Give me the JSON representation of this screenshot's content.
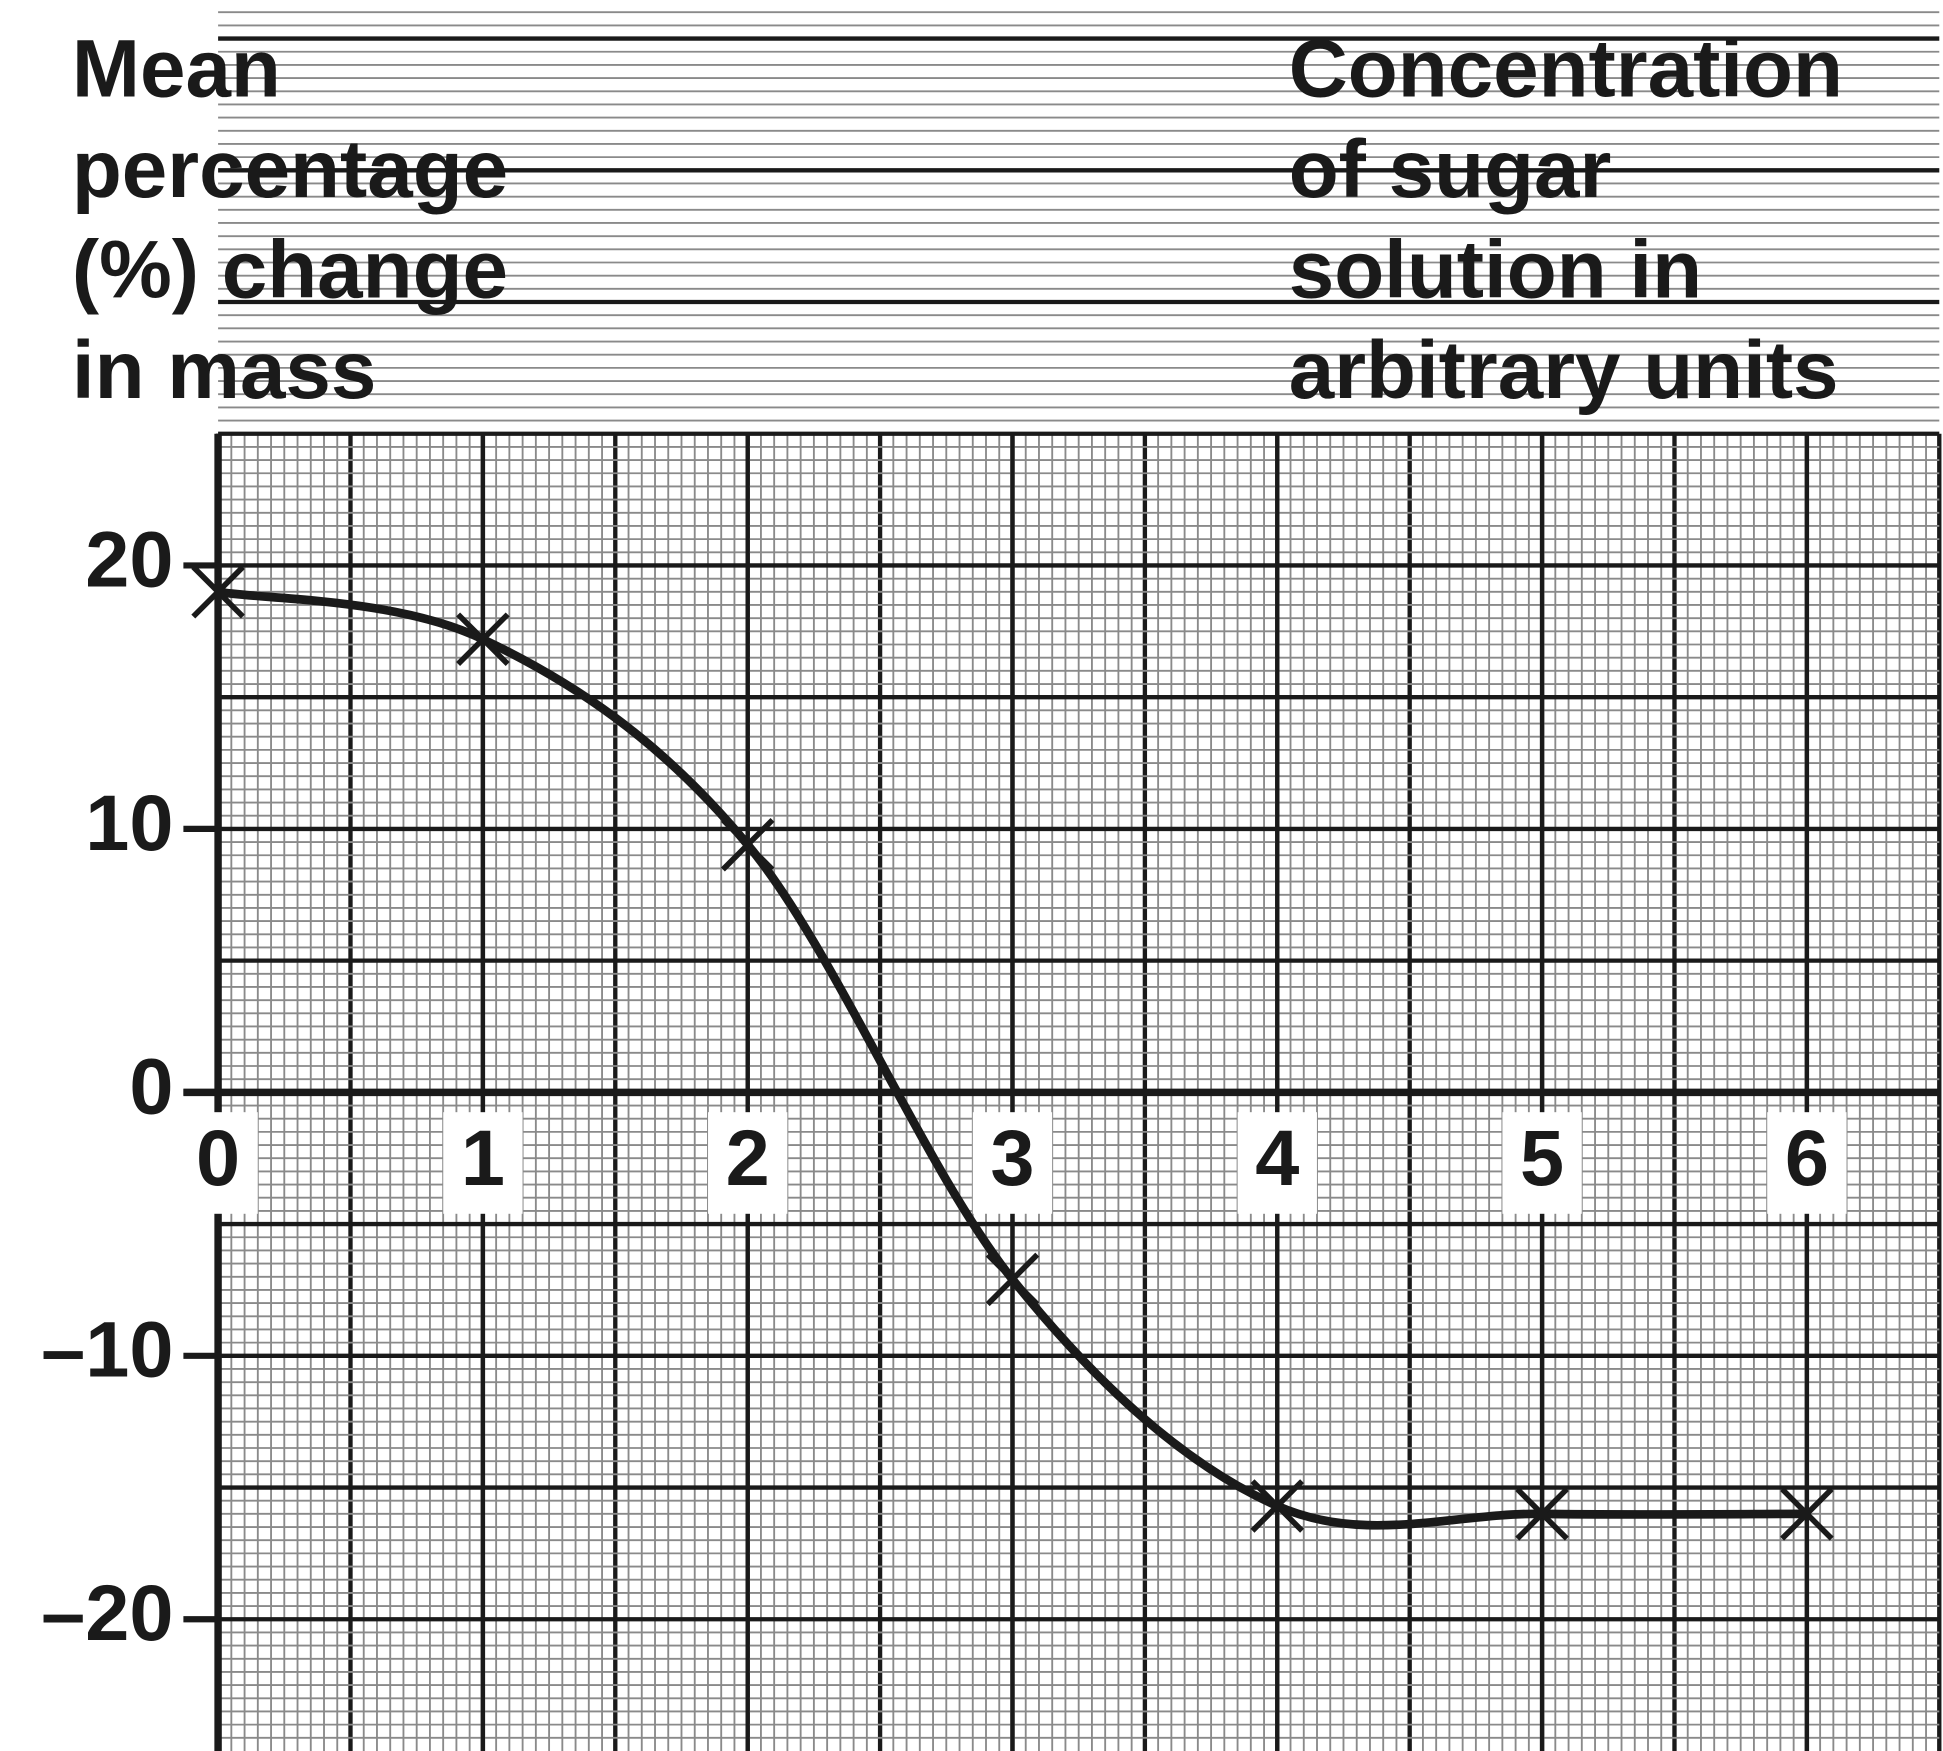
{
  "chart_data": {
    "type": "line",
    "ylabel": [
      "Mean",
      "percentage",
      "(%) change",
      "in mass"
    ],
    "xlabel": [
      "Concentration",
      "of sugar",
      "solution in",
      "arbitrary units"
    ],
    "x": [
      0,
      1,
      2,
      3,
      4,
      5,
      6
    ],
    "series": [
      {
        "color": "#1a1a1a",
        "values": [
          19.0,
          17.2,
          9.4,
          -7.1,
          -15.7,
          -16.0,
          -16.0
        ]
      }
    ],
    "xlim": [
      0,
      6.5
    ],
    "ylim": [
      -25,
      25
    ],
    "xticks": [
      0,
      1,
      2,
      3,
      4,
      5,
      6
    ],
    "yticks": [
      {
        "value": -20,
        "label": "–20"
      },
      {
        "value": -10,
        "label": "–10"
      },
      0,
      10,
      20
    ],
    "grid": true
  }
}
